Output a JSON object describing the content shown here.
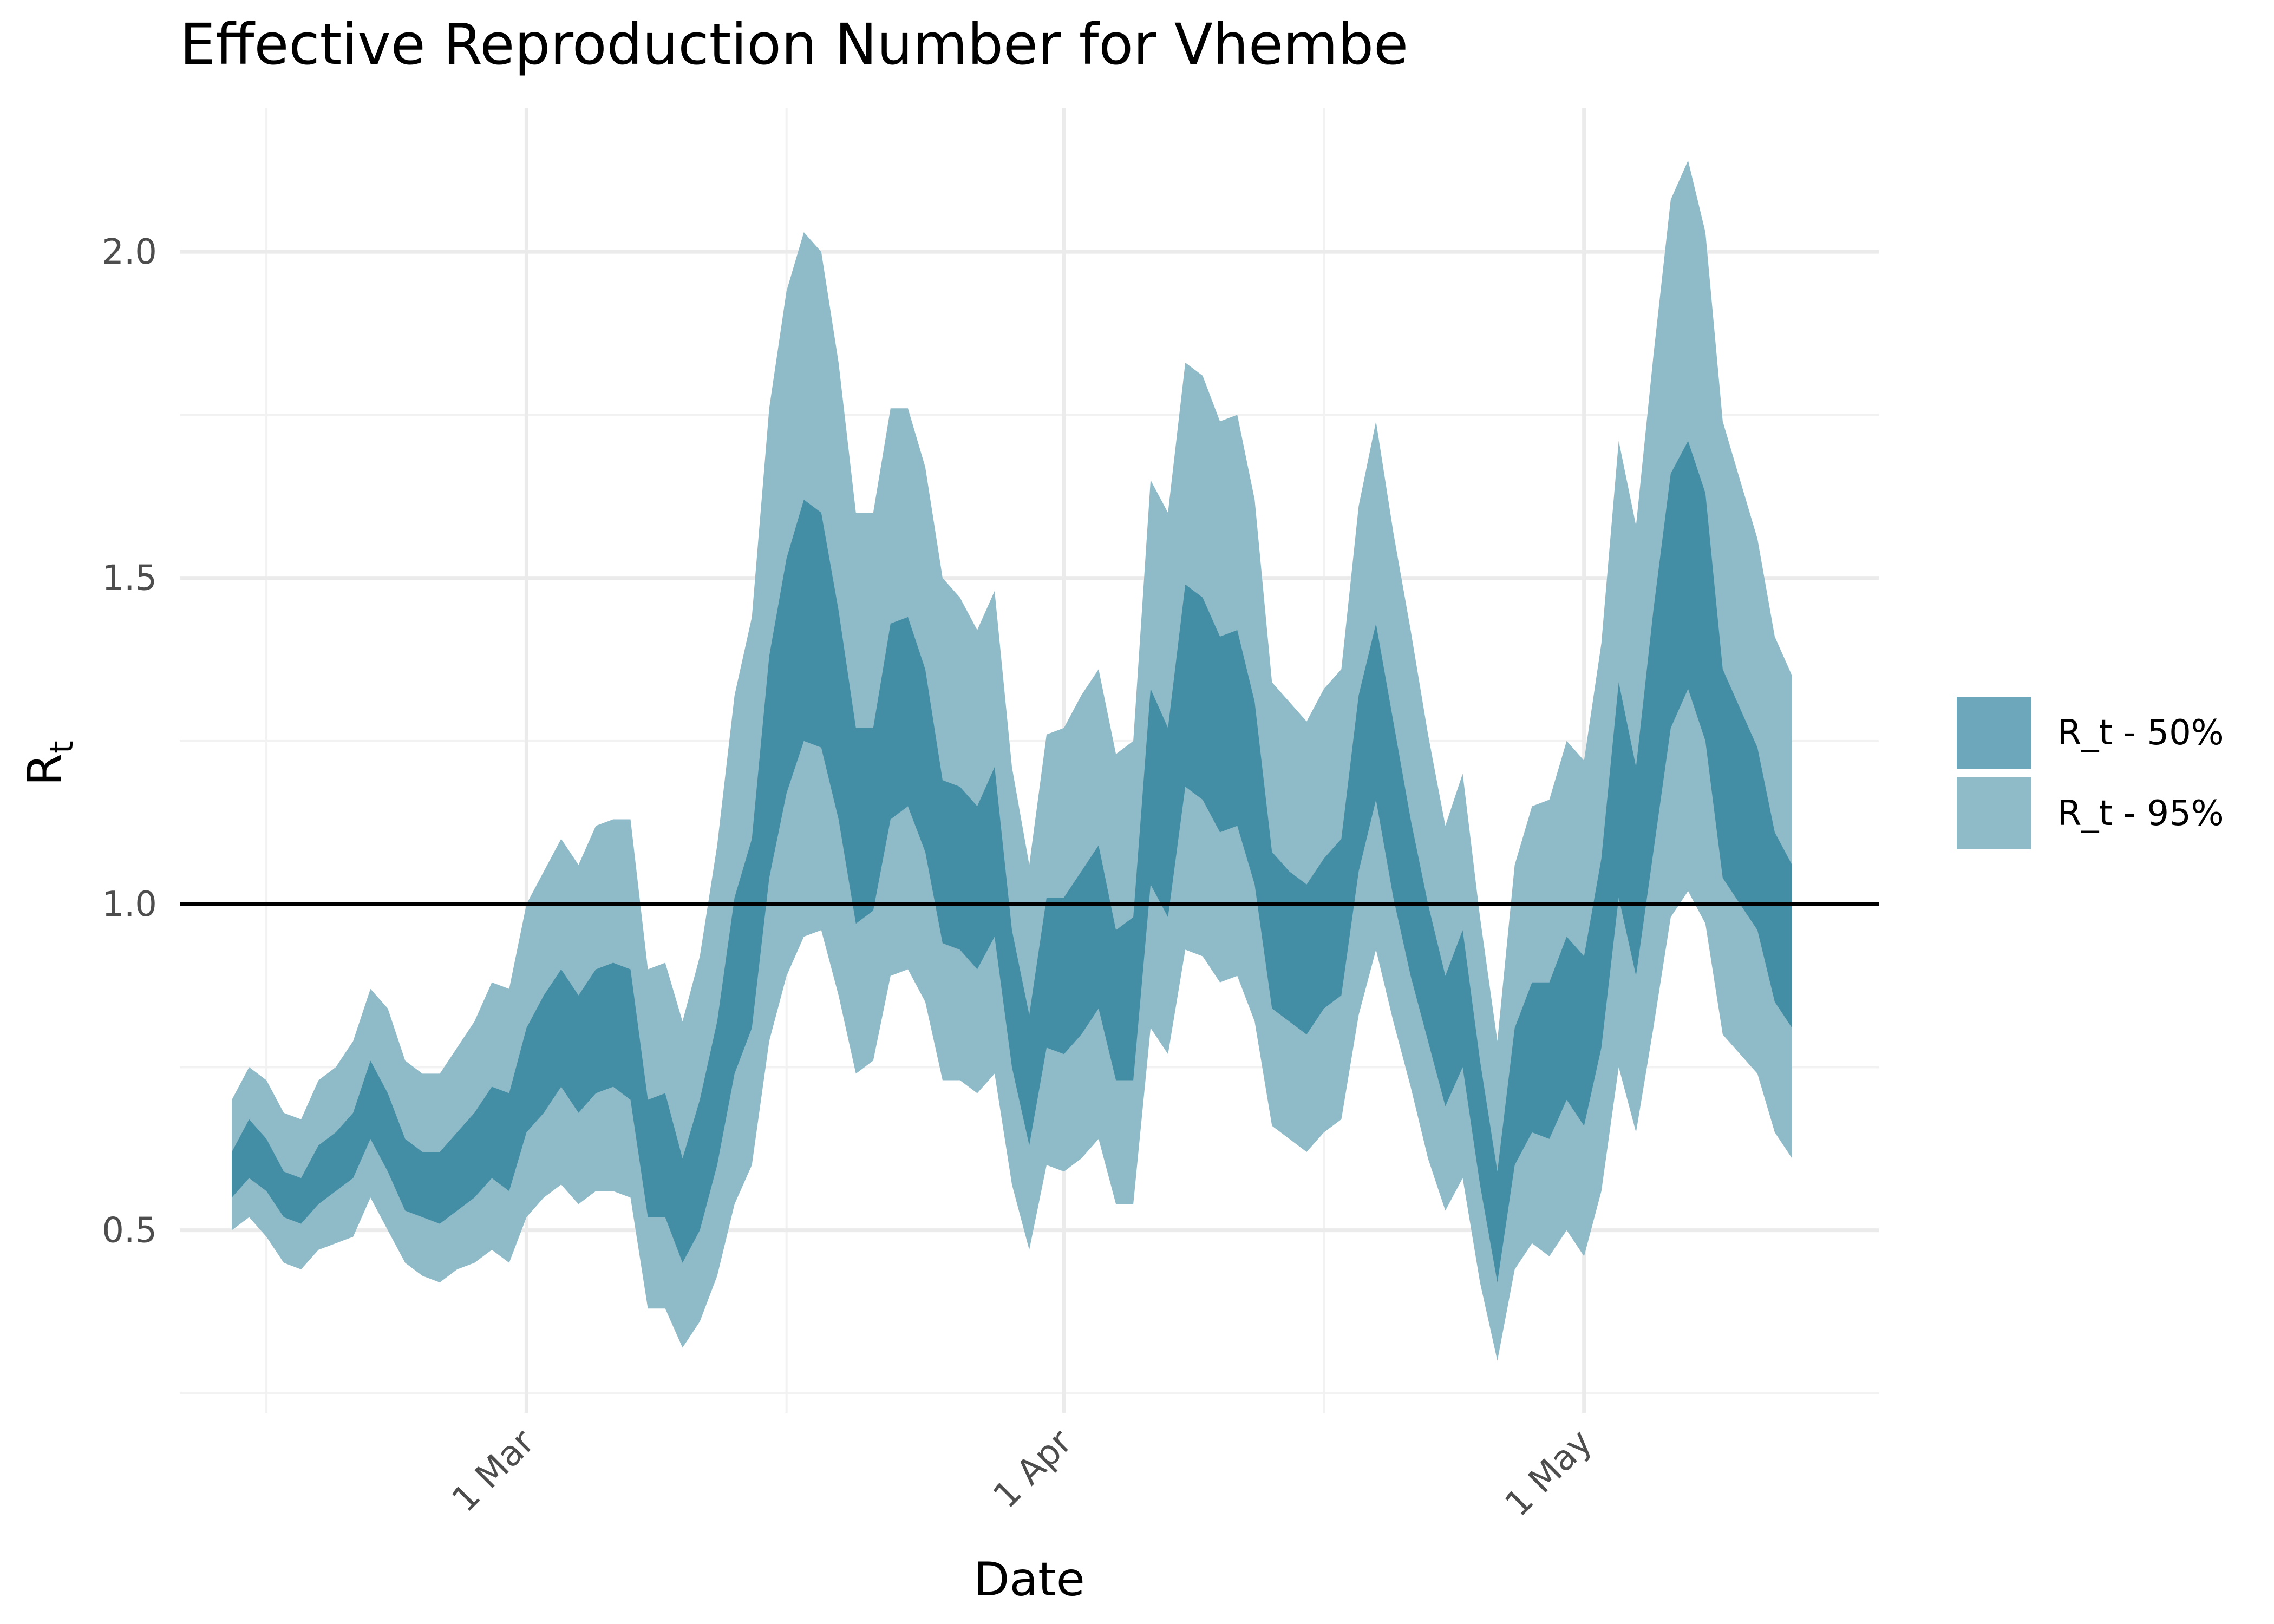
{
  "chart_data": {
    "type": "area",
    "title": "Effective Reproduction Number for Vhembe",
    "xlabel": "Date",
    "ylabel": {
      "base": "R",
      "sub": "t"
    },
    "x_start": "2020-02-13",
    "x_range": [
      "2020-02-10",
      "2020-05-18"
    ],
    "ylim": [
      0.22,
      2.22
    ],
    "y_ticks": [
      0.5,
      1.0,
      1.5,
      2.0
    ],
    "y_tick_labels": [
      "0.5",
      "1.0",
      "1.5",
      "2.0"
    ],
    "x_ticks": [
      {
        "date": "2020-03-01",
        "label": "1 Mar"
      },
      {
        "date": "2020-04-01",
        "label": "1 Apr"
      },
      {
        "date": "2020-05-01",
        "label": "1 May"
      }
    ],
    "x_minor_ticks": [
      "2020-02-15",
      "2020-03-16",
      "2020-04-16"
    ],
    "reference_line": 1.0,
    "grid": true,
    "legend": {
      "position": "right"
    },
    "series": [
      {
        "name": "R_t - 95%",
        "color": "#8fbac8",
        "lower": [
          0.5,
          0.52,
          0.49,
          0.45,
          0.44,
          0.47,
          0.48,
          0.49,
          0.55,
          0.5,
          0.45,
          0.43,
          0.42,
          0.44,
          0.45,
          0.47,
          0.45,
          0.52,
          0.55,
          0.57,
          0.54,
          0.56,
          0.56,
          0.55,
          0.38,
          0.38,
          0.32,
          0.36,
          0.43,
          0.54,
          0.6,
          0.79,
          0.89,
          0.95,
          0.96,
          0.86,
          0.74,
          0.76,
          0.89,
          0.9,
          0.85,
          0.73,
          0.73,
          0.71,
          0.74,
          0.57,
          0.47,
          0.6,
          0.59,
          0.61,
          0.64,
          0.54,
          0.54,
          0.81,
          0.77,
          0.93,
          0.92,
          0.88,
          0.89,
          0.82,
          0.66,
          0.64,
          0.62,
          0.65,
          0.67,
          0.83,
          0.93,
          0.82,
          0.72,
          0.61,
          0.53,
          0.58,
          0.42,
          0.3,
          0.44,
          0.48,
          0.46,
          0.5,
          0.46,
          0.56,
          0.75,
          0.65,
          0.81,
          0.98,
          1.02,
          0.97,
          0.8,
          0.77,
          0.74,
          0.65,
          0.61
        ],
        "upper": [
          0.7,
          0.75,
          0.73,
          0.68,
          0.67,
          0.73,
          0.75,
          0.79,
          0.87,
          0.84,
          0.76,
          0.74,
          0.74,
          0.78,
          0.82,
          0.88,
          0.87,
          1.0,
          1.05,
          1.1,
          1.06,
          1.12,
          1.13,
          1.13,
          0.9,
          0.91,
          0.82,
          0.92,
          1.09,
          1.32,
          1.44,
          1.76,
          1.94,
          2.03,
          2.0,
          1.83,
          1.6,
          1.6,
          1.76,
          1.76,
          1.67,
          1.5,
          1.47,
          1.42,
          1.48,
          1.21,
          1.06,
          1.26,
          1.27,
          1.32,
          1.36,
          1.23,
          1.25,
          1.65,
          1.6,
          1.83,
          1.81,
          1.74,
          1.75,
          1.62,
          1.34,
          1.31,
          1.28,
          1.33,
          1.36,
          1.61,
          1.74,
          1.57,
          1.42,
          1.26,
          1.12,
          1.2,
          0.98,
          0.79,
          1.06,
          1.15,
          1.16,
          1.25,
          1.22,
          1.4,
          1.71,
          1.58,
          1.84,
          2.08,
          2.14,
          2.03,
          1.74,
          1.65,
          1.56,
          1.41,
          1.35
        ]
      },
      {
        "name": "R_t - 50%",
        "color": "#6da7bb",
        "lower": [
          0.55,
          0.58,
          0.56,
          0.52,
          0.51,
          0.54,
          0.56,
          0.58,
          0.64,
          0.59,
          0.53,
          0.52,
          0.51,
          0.53,
          0.55,
          0.58,
          0.56,
          0.65,
          0.68,
          0.72,
          0.68,
          0.71,
          0.72,
          0.7,
          0.52,
          0.52,
          0.45,
          0.5,
          0.6,
          0.74,
          0.81,
          1.04,
          1.17,
          1.25,
          1.24,
          1.13,
          0.97,
          0.99,
          1.13,
          1.15,
          1.08,
          0.94,
          0.93,
          0.9,
          0.95,
          0.75,
          0.63,
          0.78,
          0.77,
          0.8,
          0.84,
          0.73,
          0.73,
          1.03,
          0.98,
          1.18,
          1.16,
          1.11,
          1.12,
          1.03,
          0.84,
          0.82,
          0.8,
          0.84,
          0.86,
          1.05,
          1.16,
          1.01,
          0.89,
          0.79,
          0.69,
          0.75,
          0.57,
          0.42,
          0.6,
          0.65,
          0.64,
          0.7,
          0.66,
          0.78,
          1.01,
          0.89,
          1.08,
          1.27,
          1.33,
          1.25,
          1.04,
          1.0,
          0.96,
          0.85,
          0.81
        ],
        "upper": [
          0.62,
          0.67,
          0.64,
          0.59,
          0.58,
          0.63,
          0.65,
          0.68,
          0.76,
          0.71,
          0.64,
          0.62,
          0.62,
          0.65,
          0.68,
          0.72,
          0.71,
          0.81,
          0.86,
          0.9,
          0.86,
          0.9,
          0.91,
          0.9,
          0.7,
          0.71,
          0.61,
          0.7,
          0.82,
          1.01,
          1.1,
          1.38,
          1.53,
          1.62,
          1.6,
          1.45,
          1.27,
          1.27,
          1.43,
          1.44,
          1.36,
          1.19,
          1.18,
          1.15,
          1.21,
          0.96,
          0.83,
          1.01,
          1.01,
          1.05,
          1.09,
          0.96,
          0.98,
          1.33,
          1.27,
          1.49,
          1.47,
          1.41,
          1.42,
          1.31,
          1.08,
          1.05,
          1.03,
          1.07,
          1.1,
          1.32,
          1.43,
          1.28,
          1.13,
          1.0,
          0.89,
          0.96,
          0.76,
          0.59,
          0.81,
          0.88,
          0.88,
          0.95,
          0.92,
          1.07,
          1.34,
          1.21,
          1.45,
          1.66,
          1.71,
          1.63,
          1.36,
          1.3,
          1.24,
          1.11,
          1.06
        ]
      }
    ]
  }
}
